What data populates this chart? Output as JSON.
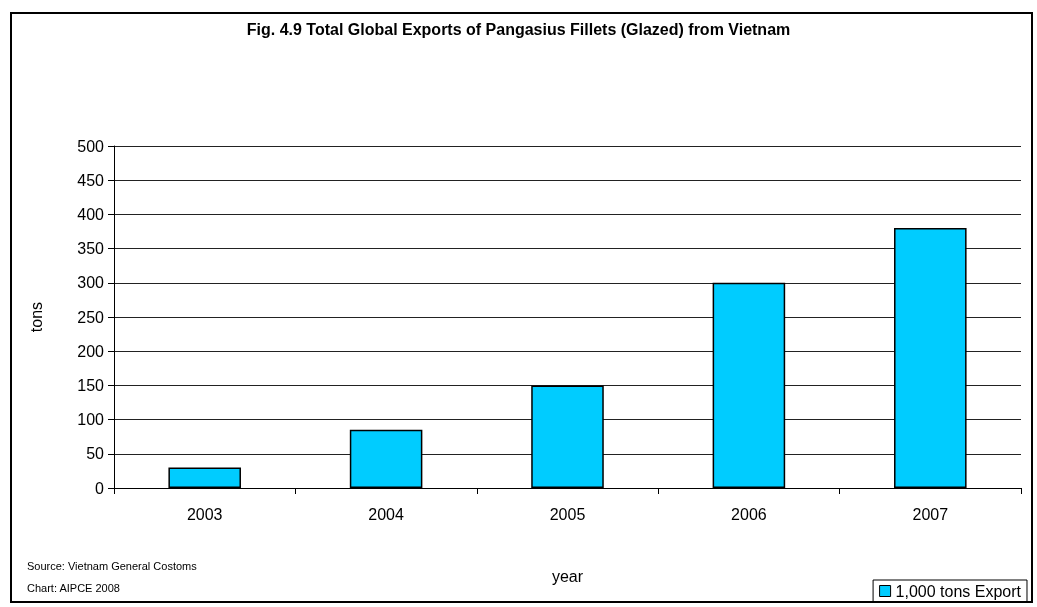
{
  "chart_data": {
    "type": "bar",
    "title": "Fig. 4.9 Total Global Exports of Pangasius Fillets (Glazed) from Vietnam",
    "xlabel": "year",
    "ylabel": "tons",
    "categories": [
      "2003",
      "2004",
      "2005",
      "2006",
      "2007"
    ],
    "series": [
      {
        "name": "1,000 tons Export",
        "color": "#00ccff",
        "values": [
          30,
          85,
          150,
          300,
          380
        ]
      }
    ],
    "ylim": [
      0,
      500
    ],
    "yticks": [
      0,
      50,
      100,
      150,
      200,
      250,
      300,
      350,
      400,
      450,
      500
    ],
    "grid": "y",
    "legend": "bottom right",
    "annotations": [
      "Source: Vietnam General Costoms",
      "Chart: AIPCE 2008"
    ]
  }
}
